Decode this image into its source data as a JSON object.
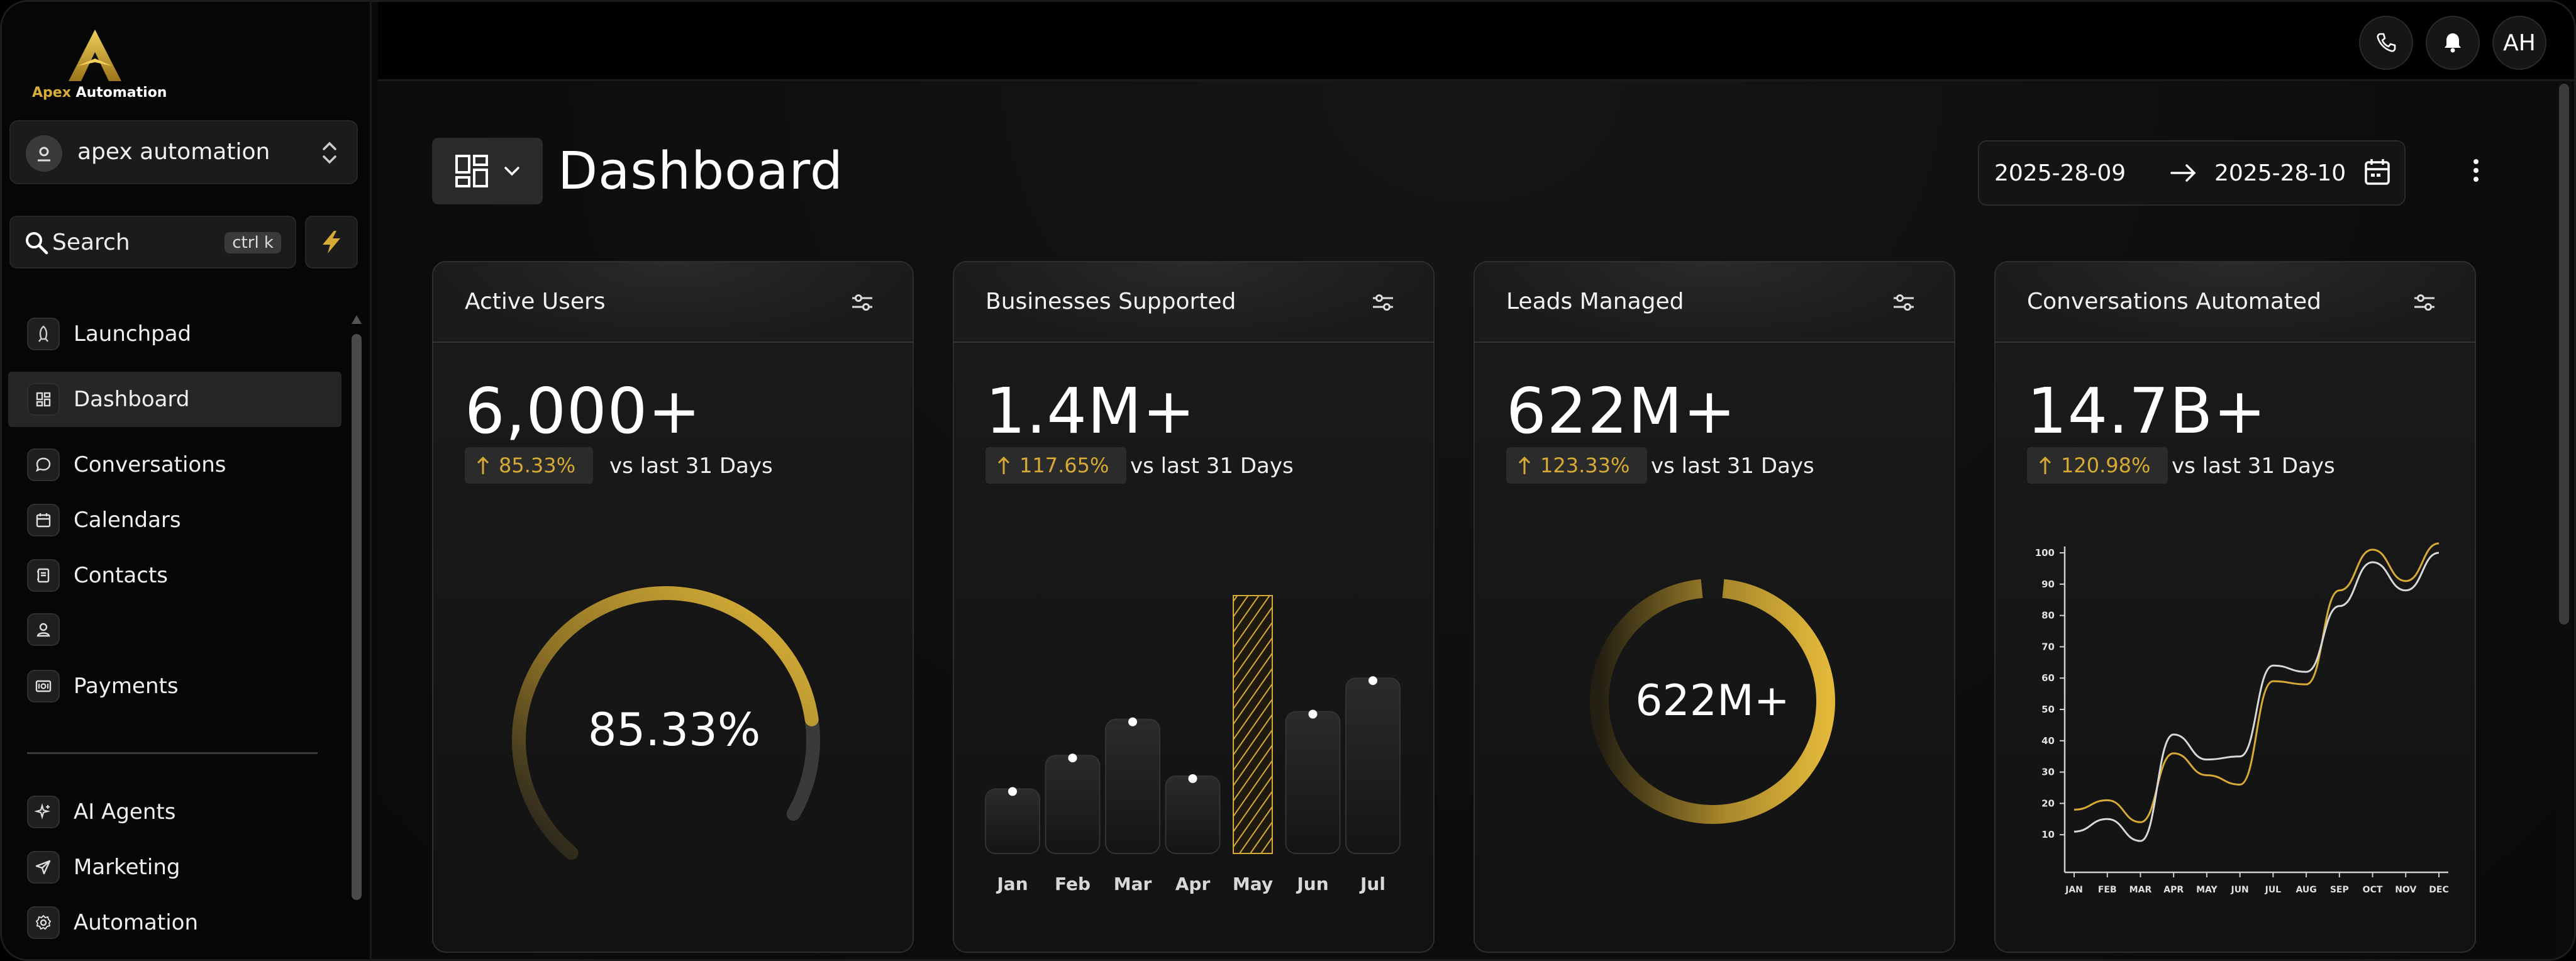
{
  "brand": {
    "name_part1": "Apex",
    "name_part2": " Automation"
  },
  "workspace": {
    "name": "apex automation"
  },
  "search": {
    "label": "Search",
    "shortcut": "ctrl k"
  },
  "nav": [
    {
      "label": "Launchpad"
    },
    {
      "label": "Dashboard"
    },
    {
      "label": "Conversations"
    },
    {
      "label": "Calendars"
    },
    {
      "label": "Contacts"
    },
    {
      "label": ""
    },
    {
      "label": "Payments"
    },
    {
      "label": "AI Agents"
    },
    {
      "label": "Marketing"
    },
    {
      "label": "Automation"
    }
  ],
  "topbar": {
    "avatar_initials": "AH"
  },
  "page": {
    "title": "Dashboard"
  },
  "date_range": {
    "start": "2025-28-09",
    "end": "2025-28-10"
  },
  "colors": {
    "accent": "#d6aa34",
    "background": "#0a0a0a",
    "card": "#161616"
  },
  "cards": [
    {
      "title": "Active Users",
      "value": "6,000+",
      "change": "85.33%",
      "comparison": "vs last 31 Days",
      "gauge_label": "85.33%"
    },
    {
      "title": "Businesses Supported",
      "value": "1.4M+",
      "change": "117.65%",
      "comparison": "vs last 31 Days"
    },
    {
      "title": "Leads Managed",
      "value": "622M+",
      "change": "123.33%",
      "comparison": "vs last 31 Days",
      "donut_label": "622M+"
    },
    {
      "title": "Conversations Automated",
      "value": "14.7B+",
      "change": "120.98%",
      "comparison": "vs last 31 Days"
    }
  ],
  "chart_data": [
    {
      "type": "gauge",
      "title": "Active Users",
      "value": 85.33,
      "max": 100,
      "label": "85.33%"
    },
    {
      "type": "bar",
      "title": "Businesses Supported",
      "categories": [
        "Jan",
        "Feb",
        "Mar",
        "Apr",
        "May",
        "Jun",
        "Jul"
      ],
      "values": [
        25,
        38,
        52,
        30,
        100,
        55,
        68
      ],
      "highlight": "May",
      "ylim": [
        0,
        100
      ]
    },
    {
      "type": "donut",
      "title": "Leads Managed",
      "value": 97,
      "max": 100,
      "label": "622M+"
    },
    {
      "type": "line",
      "title": "Conversations Automated",
      "categories": [
        "JAN",
        "FEB",
        "MAR",
        "APR",
        "MAY",
        "JUN",
        "JUL",
        "AUG",
        "SEP",
        "OCT",
        "NOV",
        "DEC"
      ],
      "yticks": [
        "10",
        "20",
        "30",
        "40",
        "50",
        "60",
        "70",
        "80",
        "90",
        "100"
      ],
      "ylim": [
        0,
        100
      ],
      "series": [
        {
          "name": "gold",
          "color": "#d6aa34",
          "values": [
            18,
            21,
            14,
            36,
            29,
            26,
            59,
            58,
            88,
            101,
            91,
            103
          ]
        },
        {
          "name": "white",
          "color": "#d8d8d8",
          "values": [
            11,
            15,
            8,
            42,
            34,
            35,
            64,
            62,
            83,
            97,
            88,
            100
          ]
        }
      ]
    }
  ]
}
